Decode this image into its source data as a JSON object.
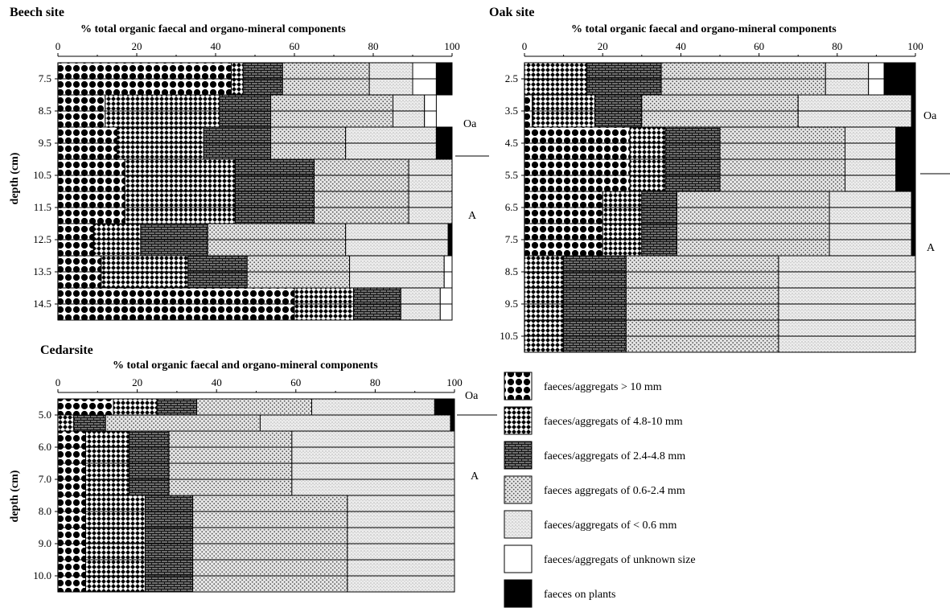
{
  "chart_data": [
    {
      "type": "bar",
      "stacked": true,
      "orientation": "horizontal",
      "title": "Beech site",
      "subtitle": "% total organic faecal and organo-mineral components",
      "ylabel": "depth (cm)",
      "xlim": [
        0,
        100
      ],
      "x_ticks": [
        "0",
        "20",
        "40",
        "60",
        "80",
        "100"
      ],
      "y_tick_labels": [
        "7.5",
        "8.5",
        "9.5",
        "10.5",
        "11.5",
        "12.5",
        "13.5",
        "14.5"
      ],
      "horizon_labels": [
        "Oa",
        "A"
      ],
      "categories": [
        "7.0",
        "7.5",
        "8.0",
        "8.5",
        "9.0",
        "9.5",
        "10.0",
        "10.5",
        "11.0",
        "11.5",
        "12.0",
        "12.5",
        "13.0",
        "13.5",
        "14.0",
        "14.5"
      ],
      "series": [
        {
          "name": "faeces/aggregats > 10 mm",
          "values": [
            44,
            44,
            12,
            12,
            15,
            15,
            17,
            17,
            17,
            17,
            9,
            9,
            11,
            11,
            60,
            60
          ]
        },
        {
          "name": "faeces/aggregats of 4.8-10 mm",
          "values": [
            3,
            3,
            29,
            29,
            22,
            22,
            28,
            28,
            28,
            28,
            12,
            12,
            22,
            22,
            15,
            15
          ]
        },
        {
          "name": "faeces/aggregats of 2.4-4.8 mm",
          "values": [
            10,
            10,
            13,
            13,
            17,
            17,
            20,
            20,
            20,
            20,
            17,
            17,
            15,
            15,
            12,
            12
          ]
        },
        {
          "name": "faeces aggregats of 0.6-2.4 mm",
          "values": [
            22,
            22,
            31,
            31,
            19,
            19,
            24,
            24,
            24,
            24,
            35,
            35,
            26,
            26,
            0,
            0
          ]
        },
        {
          "name": "faeces/aggregats of < 0.6 mm",
          "values": [
            11,
            11,
            8,
            8,
            23,
            23,
            11,
            11,
            11,
            11,
            26,
            26,
            24,
            24,
            10,
            10
          ]
        },
        {
          "name": "faeces/aggregats of unknown size",
          "values": [
            6,
            6,
            3,
            3,
            0,
            0,
            0,
            0,
            0,
            0,
            0,
            0,
            2,
            2,
            3,
            3
          ]
        },
        {
          "name": "faeces on plants",
          "values": [
            4,
            4,
            0,
            0,
            4,
            4,
            0,
            0,
            0,
            0,
            1,
            1,
            0,
            0,
            0,
            0
          ]
        }
      ]
    },
    {
      "type": "bar",
      "stacked": true,
      "orientation": "horizontal",
      "title": "Oak site",
      "subtitle": "% total organic faecal and organo-mineral components",
      "xlim": [
        0,
        100
      ],
      "x_ticks": [
        "0",
        "20",
        "40",
        "60",
        "80",
        "100"
      ],
      "y_tick_labels": [
        "2.5",
        "3.5",
        "4.5",
        "5.5",
        "6.5",
        "7.5",
        "8.5",
        "9.5",
        "10.5"
      ],
      "horizon_labels": [
        "Oa",
        "A"
      ],
      "categories": [
        "2.0",
        "2.5",
        "3.0",
        "3.5",
        "4.0",
        "4.5",
        "5.0",
        "5.5",
        "6.0",
        "6.5",
        "7.0",
        "7.5",
        "8.0",
        "8.5",
        "9.0",
        "9.5",
        "10.0",
        "10.5"
      ],
      "series": [
        {
          "name": "faeces/aggregats > 10 mm",
          "values": [
            0,
            0,
            2,
            2,
            27,
            27,
            27,
            27,
            20,
            20,
            20,
            20,
            0,
            0,
            0,
            0,
            0,
            0
          ]
        },
        {
          "name": "faeces/aggregats of 4.8-10 mm",
          "values": [
            16,
            16,
            16,
            16,
            9,
            9,
            9,
            9,
            10,
            10,
            10,
            10,
            10,
            10,
            10,
            10,
            10,
            10
          ]
        },
        {
          "name": "faeces/aggregats of 2.4-4.8 mm",
          "values": [
            19,
            19,
            12,
            12,
            14,
            14,
            14,
            14,
            9,
            9,
            9,
            9,
            16,
            16,
            16,
            16,
            16,
            16
          ]
        },
        {
          "name": "faeces aggregats of 0.6-2.4 mm",
          "values": [
            42,
            42,
            40,
            40,
            32,
            32,
            32,
            32,
            39,
            39,
            39,
            39,
            39,
            39,
            39,
            39,
            39,
            39
          ]
        },
        {
          "name": "faeces/aggregats of < 0.6 mm",
          "values": [
            11,
            11,
            29,
            29,
            13,
            13,
            13,
            13,
            21,
            21,
            21,
            21,
            35,
            35,
            35,
            35,
            35,
            35
          ]
        },
        {
          "name": "faeces/aggregats of unknown size",
          "values": [
            4,
            4,
            0,
            0,
            0,
            0,
            0,
            0,
            0,
            0,
            0,
            0,
            0,
            0,
            0,
            0,
            0,
            0
          ]
        },
        {
          "name": "faeces on plants",
          "values": [
            8,
            8,
            1,
            1,
            5,
            5,
            5,
            5,
            1,
            1,
            1,
            1,
            0,
            0,
            0,
            0,
            0,
            0
          ]
        }
      ]
    },
    {
      "type": "bar",
      "stacked": true,
      "orientation": "horizontal",
      "title": "Cedarsite",
      "subtitle": "% total organic faecal and organo-mineral components",
      "ylabel": "depth (cm)",
      "xlim": [
        0,
        100
      ],
      "x_ticks": [
        "0",
        "20",
        "40",
        "60",
        "80",
        "100"
      ],
      "y_tick_labels": [
        "5.0",
        "6.0",
        "7.0",
        "8.0",
        "9.0",
        "10.0"
      ],
      "horizon_labels": [
        "Oa",
        "A"
      ],
      "categories": [
        "4.5",
        "5.0",
        "5.5",
        "6.0",
        "6.5",
        "7.0",
        "7.5",
        "8.0",
        "8.5",
        "9.0",
        "9.5",
        "10.0"
      ],
      "series": [
        {
          "name": "faeces/aggregats > 10 mm",
          "values": [
            14,
            0,
            7,
            7,
            7,
            7,
            7,
            7,
            7,
            7,
            7,
            7
          ]
        },
        {
          "name": "faeces/aggregats of 4.8-10 mm",
          "values": [
            11,
            4,
            11,
            11,
            11,
            11,
            15,
            15,
            15,
            15,
            15,
            15
          ]
        },
        {
          "name": "faeces/aggregats of 2.4-4.8 mm",
          "values": [
            10,
            8,
            10,
            10,
            10,
            10,
            12,
            12,
            12,
            12,
            12,
            12
          ]
        },
        {
          "name": "faeces aggregats of 0.6-2.4 mm",
          "values": [
            29,
            39,
            31,
            31,
            31,
            31,
            39,
            39,
            39,
            39,
            39,
            39
          ]
        },
        {
          "name": "faeces/aggregats of < 0.6 mm",
          "values": [
            31,
            48,
            41,
            41,
            41,
            41,
            27,
            27,
            27,
            27,
            27,
            27
          ]
        },
        {
          "name": "faeces/aggregats of unknown size",
          "values": [
            0,
            0,
            0,
            0,
            0,
            0,
            0,
            0,
            0,
            0,
            0,
            0
          ]
        },
        {
          "name": "faeces on plants",
          "values": [
            5,
            1,
            0,
            0,
            0,
            0,
            0,
            0,
            0,
            0,
            0,
            0
          ]
        }
      ]
    }
  ],
  "legend": {
    "items": [
      {
        "label": "faeces/aggregats > 10 mm"
      },
      {
        "label": "faeces/aggregats of 4.8-10 mm"
      },
      {
        "label": "faeces/aggregats of 2.4-4.8 mm"
      },
      {
        "label": "faeces aggregats of 0.6-2.4 mm"
      },
      {
        "label": "faeces/aggregats of < 0.6 mm"
      },
      {
        "label": "faeces/aggregats of unknown size"
      },
      {
        "label": "faeces on plants"
      }
    ]
  }
}
